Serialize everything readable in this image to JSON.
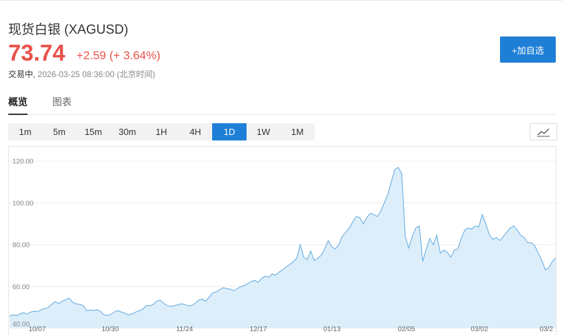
{
  "header": {
    "title": "现货白银 (XAGUSD)",
    "price": "73.74",
    "change": "+2.59 (+ 3.64%)",
    "status": "交易中,",
    "datetime": "2026-03-25 08:36:00 (北京时间)",
    "watchlist_button": "+加自选"
  },
  "tabs": [
    {
      "label": "概览",
      "active": true
    },
    {
      "label": "图表",
      "active": false
    }
  ],
  "periods": [
    "1m",
    "5m",
    "15m",
    "30m",
    "1H",
    "4H",
    "1D",
    "1W",
    "1M"
  ],
  "active_period": "1D",
  "chart_type_icon": "line-chart-icon",
  "colors": {
    "up": "#e8524a",
    "accent": "#1f7fd6",
    "line": "#6aaee0",
    "fill": "#ddeefb"
  },
  "chart_data": {
    "type": "area",
    "ylim": [
      40,
      120
    ],
    "yticks": [
      "120.00",
      "100.00",
      "80.00",
      "60.00",
      "40.00"
    ],
    "xticks": [
      "10/07",
      "10/30",
      "11/24",
      "12/17",
      "01/13",
      "02/05",
      "03/02",
      "03/2"
    ],
    "grid": true,
    "series": [
      {
        "values": [
          46.0,
          46.5,
          46.2,
          47.0,
          47.5,
          46.8,
          47.8,
          48.2,
          48.0,
          49.0,
          49.5,
          50.0,
          51.5,
          52.8,
          52.0,
          53.0,
          53.8,
          54.5,
          52.5,
          51.8,
          51.5,
          51.0,
          48.5,
          48.8,
          48.6,
          49.0,
          48.0,
          46.5,
          46.2,
          46.8,
          48.0,
          48.5,
          47.8,
          47.2,
          46.5,
          47.0,
          47.8,
          48.5,
          49.2,
          51.0,
          50.8,
          51.5,
          53.0,
          53.5,
          52.0,
          51.0,
          50.5,
          50.8,
          51.3,
          51.8,
          51.5,
          50.8,
          51.0,
          52.0,
          53.5,
          54.0,
          53.0,
          55.0,
          57.0,
          57.5,
          58.5,
          59.5,
          59.0,
          58.8,
          58.0,
          59.0,
          60.0,
          60.5,
          61.5,
          62.5,
          63.0,
          62.0,
          64.0,
          65.0,
          64.5,
          66.0,
          65.5,
          67.0,
          68.0,
          69.5,
          70.5,
          72.0,
          73.5,
          80.0,
          74.0,
          73.0,
          77.0,
          72.5,
          73.5,
          75.0,
          78.0,
          82.0,
          79.0,
          78.0,
          80.0,
          84.0,
          86.0,
          88.0,
          91.0,
          93.5,
          93.0,
          90.0,
          93.0,
          95.0,
          94.5,
          93.5,
          96.0,
          100.0,
          104.0,
          110.0,
          116.0,
          117.0,
          114.0,
          84.0,
          78.5,
          84.0,
          88.0,
          89.0,
          72.0,
          78.0,
          83.0,
          80.0,
          84.5,
          76.0,
          77.5,
          76.5,
          74.0,
          77.5,
          78.0,
          83.0,
          87.0,
          88.0,
          87.5,
          89.0,
          88.5,
          94.5,
          90.0,
          85.0,
          82.5,
          83.5,
          82.0,
          84.0,
          86.0,
          88.0,
          89.0,
          87.0,
          84.5,
          83.5,
          81.0,
          81.0,
          79.5,
          76.0,
          72.5,
          68.0,
          69.0,
          72.0,
          73.74
        ]
      }
    ]
  }
}
